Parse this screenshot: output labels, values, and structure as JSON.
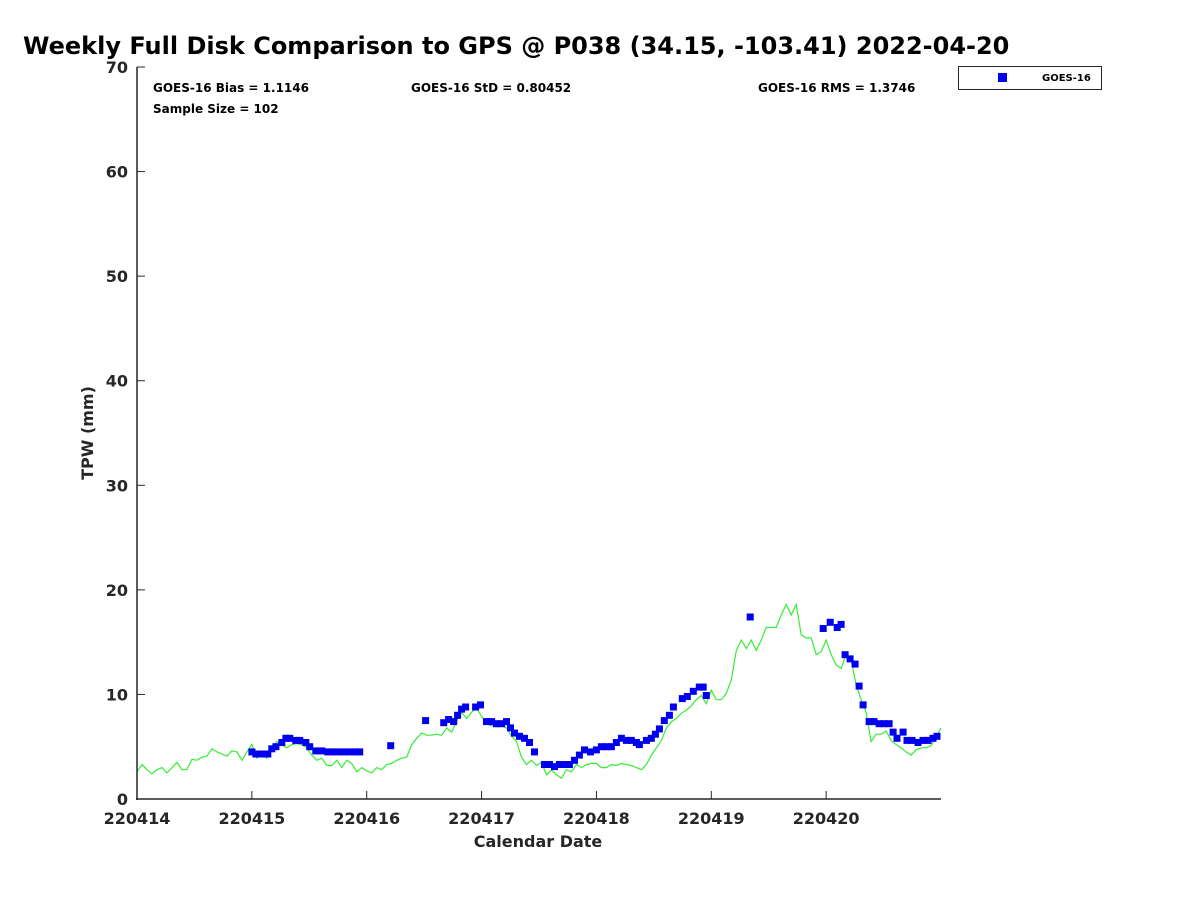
{
  "chart_data": {
    "type": "scatter",
    "title": "Weekly Full Disk Comparison to GPS @ P038 (34.15, -103.41) 2022-04-20",
    "xlabel": "Calendar Date",
    "ylabel": "TPW (mm)",
    "x_units": "days since 220414",
    "xlim": [
      0,
      7
    ],
    "ylim": [
      0,
      70
    ],
    "x_ticks": [
      0,
      1,
      2,
      3,
      4,
      5,
      6
    ],
    "x_tick_labels": [
      "220414",
      "220415",
      "220416",
      "220417",
      "220418",
      "220419",
      "220420"
    ],
    "y_ticks": [
      0,
      10,
      20,
      30,
      40,
      50,
      60,
      70
    ],
    "y_tick_labels": [
      "0",
      "10",
      "20",
      "30",
      "40",
      "50",
      "60",
      "70"
    ],
    "grid": false,
    "legend": {
      "placement": "top-right, outside plot",
      "entries": [
        "GOES-16"
      ]
    },
    "stats": {
      "bias": "GOES-16 Bias = 1.1146",
      "std": "GOES-16 StD = 0.80452",
      "rms": "GOES-16 RMS = 1.3746",
      "sample": "Sample Size = 102"
    },
    "colors": {
      "goes": "#0000ee",
      "gps": "#33ee33",
      "axis": "#262626"
    },
    "series": [
      {
        "name": "GPS",
        "kind": "line",
        "x_start": 0,
        "x_step": 0.04348,
        "values": [
          2.6,
          3.3,
          2.8,
          2.4,
          2.8,
          3.0,
          2.5,
          3.0,
          3.5,
          2.8,
          2.8,
          3.8,
          3.7,
          4.0,
          4.1,
          4.8,
          4.5,
          4.3,
          4.1,
          4.6,
          4.5,
          3.7,
          4.5,
          5.2,
          3.9,
          4.3,
          3.9,
          4.7,
          5.5,
          5.2,
          4.9,
          5.2,
          5.3,
          5.2,
          4.9,
          4.2,
          3.7,
          3.9,
          3.2,
          3.2,
          3.7,
          3.0,
          3.7,
          3.4,
          2.6,
          3.0,
          2.7,
          2.5,
          3.0,
          2.8,
          3.3,
          3.4,
          3.7,
          3.9,
          4.0,
          5.2,
          5.8,
          6.3,
          6.1,
          6.1,
          6.2,
          6.1,
          6.8,
          6.4,
          7.4,
          8.3,
          7.7,
          8.3,
          8.7,
          7.9,
          7.2,
          7.0,
          6.9,
          7.0,
          6.8,
          6.0,
          5.5,
          4.0,
          3.3,
          3.7,
          3.2,
          3.5,
          2.3,
          2.8,
          2.3,
          2.0,
          2.8,
          2.6,
          3.3,
          3.0,
          3.3,
          3.4,
          3.4,
          3.0,
          3.0,
          3.3,
          3.2,
          3.4,
          3.3,
          3.2,
          3.0,
          2.8,
          3.3,
          4.2,
          4.9,
          5.6,
          6.8,
          7.4,
          7.7,
          8.2,
          8.5,
          8.9,
          9.5,
          9.9,
          9.1,
          10.4,
          9.5,
          9.5,
          10.1,
          11.4,
          14.2,
          15.2,
          14.4,
          15.2,
          14.2,
          15.2,
          16.4,
          16.4,
          16.4,
          17.6,
          18.6,
          17.6,
          18.6,
          15.7,
          15.4,
          15.4,
          13.8,
          14.1,
          15.2,
          13.8,
          12.8,
          12.5,
          13.8,
          13.3,
          10.9,
          9.5,
          8.3,
          5.5,
          6.2,
          6.2,
          6.5,
          5.6,
          5.2,
          4.9,
          4.5,
          4.2,
          4.7,
          4.9,
          4.9,
          5.1,
          5.9,
          6.8
        ]
      },
      {
        "name": "GOES-16",
        "kind": "scatter",
        "points": [
          [
            1.0,
            4.5
          ],
          [
            1.035,
            4.3
          ],
          [
            1.07,
            4.3
          ],
          [
            1.104,
            4.3
          ],
          [
            1.139,
            4.3
          ],
          [
            1.174,
            4.8
          ],
          [
            1.209,
            5.0
          ],
          [
            1.261,
            5.4
          ],
          [
            1.296,
            5.8
          ],
          [
            1.33,
            5.8
          ],
          [
            1.383,
            5.6
          ],
          [
            1.417,
            5.6
          ],
          [
            1.47,
            5.4
          ],
          [
            1.504,
            5.0
          ],
          [
            1.557,
            4.6
          ],
          [
            1.609,
            4.6
          ],
          [
            1.661,
            4.5
          ],
          [
            1.696,
            4.5
          ],
          [
            1.748,
            4.5
          ],
          [
            1.8,
            4.5
          ],
          [
            1.852,
            4.5
          ],
          [
            1.904,
            4.5
          ],
          [
            1.939,
            4.5
          ],
          [
            2.209,
            5.1
          ],
          [
            2.513,
            7.5
          ],
          [
            2.67,
            7.3
          ],
          [
            2.713,
            7.6
          ],
          [
            2.757,
            7.4
          ],
          [
            2.791,
            8.0
          ],
          [
            2.826,
            8.6
          ],
          [
            2.861,
            8.8
          ],
          [
            2.948,
            8.8
          ],
          [
            2.991,
            9.0
          ],
          [
            3.043,
            7.4
          ],
          [
            3.087,
            7.4
          ],
          [
            3.13,
            7.2
          ],
          [
            3.174,
            7.2
          ],
          [
            3.217,
            7.4
          ],
          [
            3.252,
            6.8
          ],
          [
            3.287,
            6.3
          ],
          [
            3.33,
            6.0
          ],
          [
            3.374,
            5.8
          ],
          [
            3.417,
            5.4
          ],
          [
            3.461,
            4.5
          ],
          [
            3.548,
            3.3
          ],
          [
            3.591,
            3.3
          ],
          [
            3.635,
            3.1
          ],
          [
            3.678,
            3.3
          ],
          [
            3.722,
            3.3
          ],
          [
            3.765,
            3.3
          ],
          [
            3.809,
            3.7
          ],
          [
            3.852,
            4.2
          ],
          [
            3.896,
            4.7
          ],
          [
            3.948,
            4.5
          ],
          [
            4.0,
            4.7
          ],
          [
            4.043,
            5.0
          ],
          [
            4.087,
            5.0
          ],
          [
            4.13,
            5.0
          ],
          [
            4.174,
            5.4
          ],
          [
            4.217,
            5.8
          ],
          [
            4.261,
            5.6
          ],
          [
            4.304,
            5.6
          ],
          [
            4.348,
            5.4
          ],
          [
            4.374,
            5.2
          ],
          [
            4.435,
            5.6
          ],
          [
            4.478,
            5.8
          ],
          [
            4.513,
            6.2
          ],
          [
            4.548,
            6.7
          ],
          [
            4.591,
            7.5
          ],
          [
            4.635,
            8.0
          ],
          [
            4.67,
            8.8
          ],
          [
            4.748,
            9.6
          ],
          [
            4.791,
            9.8
          ],
          [
            4.843,
            10.3
          ],
          [
            4.896,
            10.7
          ],
          [
            4.93,
            10.7
          ],
          [
            4.957,
            9.9
          ],
          [
            5.339,
            17.4
          ],
          [
            5.974,
            16.3
          ],
          [
            6.035,
            16.9
          ],
          [
            6.096,
            16.4
          ],
          [
            6.13,
            16.7
          ],
          [
            6.165,
            13.8
          ],
          [
            6.209,
            13.4
          ],
          [
            6.252,
            12.9
          ],
          [
            6.287,
            10.8
          ],
          [
            6.322,
            9.0
          ],
          [
            6.374,
            7.4
          ],
          [
            6.417,
            7.4
          ],
          [
            6.461,
            7.2
          ],
          [
            6.504,
            7.2
          ],
          [
            6.548,
            7.2
          ],
          [
            6.583,
            6.4
          ],
          [
            6.617,
            5.8
          ],
          [
            6.67,
            6.4
          ],
          [
            6.704,
            5.6
          ],
          [
            6.748,
            5.6
          ],
          [
            6.8,
            5.4
          ],
          [
            6.843,
            5.6
          ],
          [
            6.887,
            5.6
          ],
          [
            6.93,
            5.8
          ],
          [
            6.965,
            6.0
          ]
        ]
      }
    ]
  }
}
